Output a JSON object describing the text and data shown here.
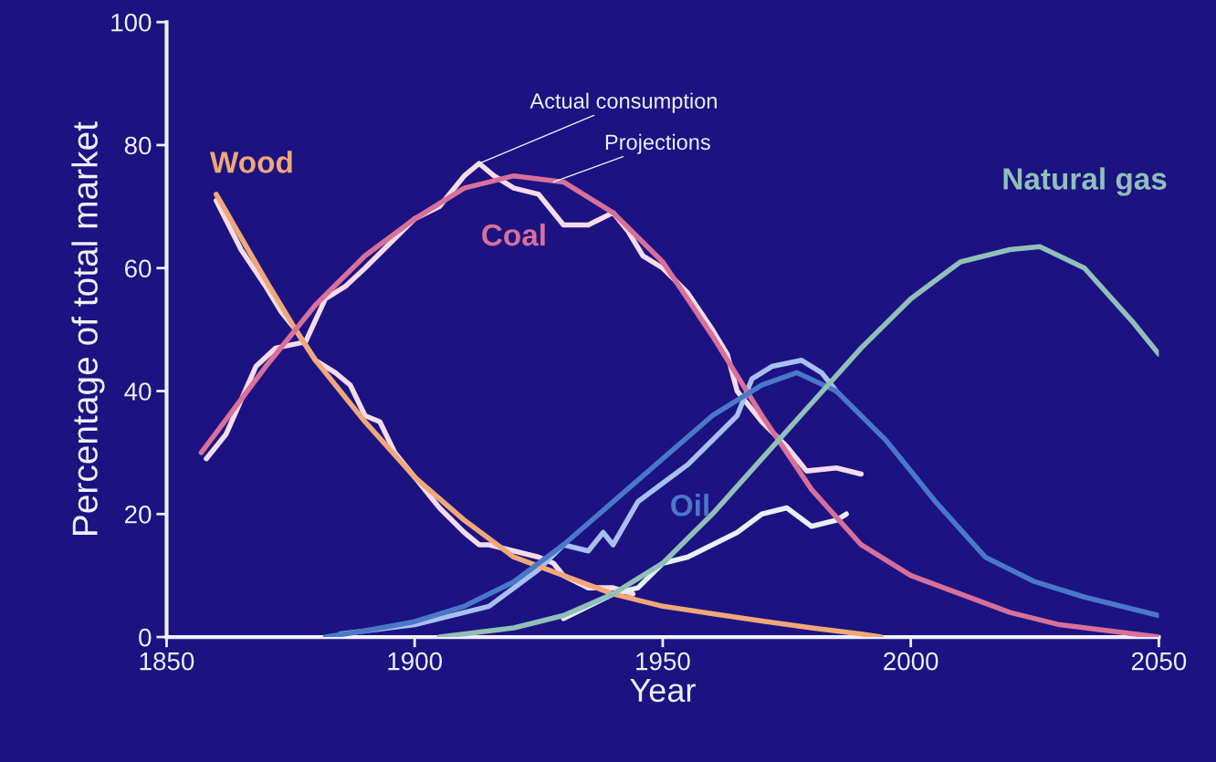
{
  "chart_data": {
    "type": "line",
    "xlabel": "Year",
    "ylabel": "Percentage of total market",
    "xlim": [
      1850,
      2050
    ],
    "xticks": [
      1850,
      1900,
      1950,
      2000,
      2050
    ],
    "ylim": [
      0,
      100
    ],
    "yticks": [
      0,
      20,
      40,
      60,
      80,
      100
    ],
    "grid": false,
    "legend": false,
    "marker": "none",
    "line_style": "solid",
    "series": [
      {
        "name": "Wood",
        "color": "#f0a878",
        "x": [
          1860,
          1870,
          1876,
          1880,
          1890,
          1900,
          1910,
          1920,
          1930,
          1940,
          1950,
          1960,
          1970,
          1980,
          1990,
          1994
        ],
        "values": [
          72,
          58,
          50,
          45,
          35,
          26,
          19,
          13,
          10,
          7,
          5,
          3.8,
          2.6,
          1.5,
          0.5,
          0
        ]
      },
      {
        "color": "#f4dcea",
        "x": [
          1860,
          1865,
          1870,
          1873,
          1876,
          1880,
          1884,
          1887,
          1890,
          1893,
          1896,
          1900,
          1905,
          1910,
          1913,
          1915,
          1920,
          1925,
          1928,
          1930,
          1935,
          1940,
          1944
        ],
        "values": [
          71,
          63,
          57,
          53,
          50,
          45,
          43,
          41,
          36,
          35,
          30,
          26,
          21,
          17,
          15,
          15,
          14,
          13,
          12,
          10,
          8,
          8,
          7
        ]
      },
      {
        "name": "Coal",
        "color": "#d8709a",
        "x": [
          1857,
          1870,
          1880,
          1890,
          1900,
          1910,
          1920,
          1930,
          1940,
          1950,
          1960,
          1970,
          1980,
          1990,
          2000,
          2010,
          2020,
          2030,
          2040,
          2050
        ],
        "values": [
          30,
          44,
          54,
          62,
          68,
          73,
          75,
          74,
          69,
          61,
          49,
          36,
          24,
          15,
          10,
          7,
          4,
          2,
          1,
          0
        ]
      },
      {
        "color": "#f4dcea",
        "x": [
          1858,
          1862,
          1868,
          1872,
          1878,
          1882,
          1886,
          1890,
          1895,
          1900,
          1905,
          1910,
          1913,
          1916,
          1920,
          1925,
          1930,
          1935,
          1940,
          1943,
          1946,
          1950,
          1955,
          1960,
          1963,
          1965,
          1967,
          1970,
          1975,
          1979,
          1985,
          1990
        ],
        "values": [
          29,
          33,
          44,
          47,
          48,
          55,
          57,
          60,
          64,
          68,
          70,
          75,
          77,
          75,
          73,
          72,
          67,
          67,
          69,
          66,
          62,
          60,
          56,
          50,
          46,
          40,
          38,
          35,
          31,
          27,
          27.5,
          26.5
        ]
      },
      {
        "name": "Oil",
        "color": "#4a78c8",
        "x": [
          1882,
          1890,
          1900,
          1910,
          1920,
          1930,
          1940,
          1950,
          1960,
          1970,
          1977,
          1985,
          1995,
          2005,
          2015,
          2025,
          2035,
          2050
        ],
        "values": [
          0,
          1,
          2.5,
          5,
          9,
          15,
          22,
          29,
          36,
          41,
          43,
          40,
          32,
          22,
          13,
          9,
          6.5,
          3.5
        ]
      },
      {
        "color": "#a8c0f0",
        "x": [
          1885,
          1900,
          1910,
          1915,
          1920,
          1925,
          1930,
          1935,
          1938,
          1940,
          1945,
          1950,
          1955,
          1960,
          1965,
          1968,
          1972,
          1978,
          1982,
          1985
        ],
        "values": [
          0.5,
          2,
          4,
          5,
          8,
          11,
          15,
          14,
          17,
          15,
          22,
          25,
          28,
          32,
          36,
          42,
          44,
          45,
          43,
          40
        ]
      },
      {
        "name": "Natural gas",
        "color": "#90c0b8",
        "x": [
          1905,
          1920,
          1930,
          1940,
          1950,
          1960,
          1970,
          1980,
          1990,
          2000,
          2010,
          2020,
          2026,
          2035,
          2045,
          2050
        ],
        "values": [
          0,
          1.5,
          3.5,
          7,
          12,
          20,
          29,
          38,
          47,
          55,
          61,
          63,
          63.5,
          60,
          51,
          46
        ]
      },
      {
        "color": "#e8f0f8",
        "x": [
          1930,
          1940,
          1945,
          1950,
          1955,
          1960,
          1965,
          1970,
          1975,
          1980,
          1985,
          1987
        ],
        "values": [
          3,
          7,
          8,
          12,
          13,
          15,
          17,
          20,
          21,
          18,
          19,
          20
        ]
      }
    ],
    "annotations": [
      {
        "text": "Actual consumption",
        "x": 1913,
        "y": 77
      },
      {
        "text": "Projections",
        "x": 1928,
        "y": 74
      }
    ]
  }
}
